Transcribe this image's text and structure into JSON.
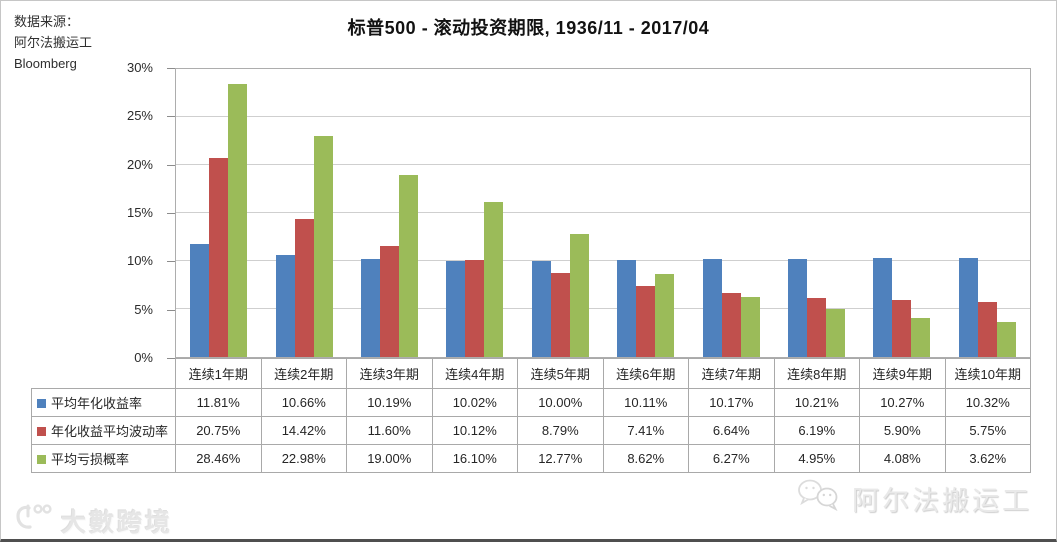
{
  "source": {
    "lines": [
      "数据来源：",
      "阿尔法搬运工",
      "Bloomberg"
    ]
  },
  "chart_data": {
    "type": "bar",
    "title": "标普500 - 滚动投资期限, 1936/11 - 2017/04",
    "categories": [
      "连续1年期",
      "连续2年期",
      "连续3年期",
      "连续4年期",
      "连续5年期",
      "连续6年期",
      "连续7年期",
      "连续8年期",
      "连续9年期",
      "连续10年期"
    ],
    "series": [
      {
        "name": "平均年化收益率",
        "color": "#4f81bd",
        "values": [
          11.81,
          10.66,
          10.19,
          10.02,
          10.0,
          10.11,
          10.17,
          10.21,
          10.27,
          10.32
        ]
      },
      {
        "name": "年化收益平均波动率",
        "color": "#c0504d",
        "values": [
          20.75,
          14.42,
          11.6,
          10.12,
          8.79,
          7.41,
          6.64,
          6.19,
          5.9,
          5.75
        ]
      },
      {
        "name": "平均亏损概率",
        "color": "#9bbb59",
        "values": [
          28.46,
          22.98,
          19.0,
          16.1,
          12.77,
          8.62,
          6.27,
          4.95,
          4.08,
          3.62
        ]
      }
    ],
    "ylim": [
      0,
      30
    ],
    "yticks": [
      "0%",
      "5%",
      "10%",
      "15%",
      "20%",
      "25%",
      "30%"
    ],
    "value_suffix": "%",
    "grid": true,
    "legend_position": "table-left"
  },
  "watermarks": {
    "bottom_left": {
      "icon": "hundred-smiley-icon",
      "text": "大數跨境"
    },
    "bottom_right": {
      "icon": "wechat-icon",
      "text": "阿尔法搬运工"
    }
  }
}
